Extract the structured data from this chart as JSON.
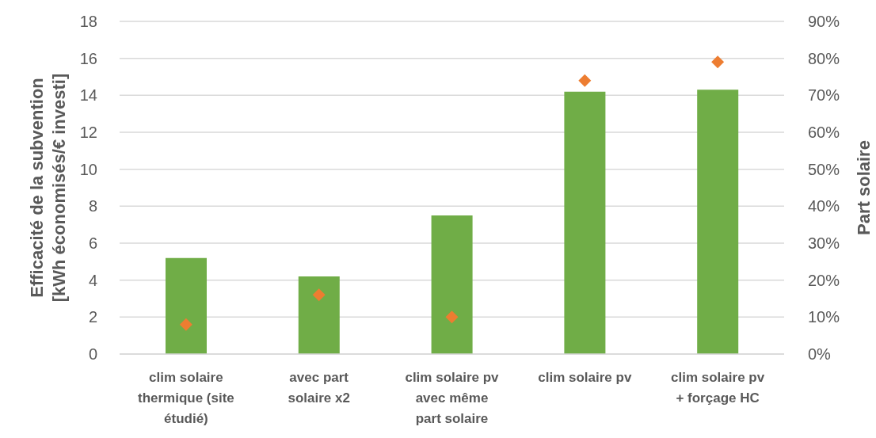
{
  "chart_data": {
    "type": "bar",
    "categories": [
      "clim solaire thermique (site étudié)",
      "avec part solaire x2",
      "clim solaire pv avec même part solaire",
      "clim solaire pv",
      "clim solaire pv + forçage HC"
    ],
    "ylabel": "Efficacité de la subvention [kWh économisés/€ investi]",
    "y2label": "Part solaire",
    "ylim": [
      0,
      18
    ],
    "yticks": [
      0,
      2,
      4,
      6,
      8,
      10,
      12,
      14,
      16,
      18
    ],
    "y2lim": [
      0,
      90
    ],
    "y2ticks": [
      {
        "value": 0,
        "label": "0%"
      },
      {
        "value": 10,
        "label": "10%"
      },
      {
        "value": 20,
        "label": "20%"
      },
      {
        "value": 30,
        "label": "30%"
      },
      {
        "value": 40,
        "label": "40%"
      },
      {
        "value": 50,
        "label": "50%"
      },
      {
        "value": 60,
        "label": "60%"
      },
      {
        "value": 70,
        "label": "70%"
      },
      {
        "value": 80,
        "label": "80%"
      },
      {
        "value": 90,
        "label": "90%"
      }
    ],
    "grid": "y",
    "marker": "diamond",
    "series": [
      {
        "color": "#70ad47",
        "values": [
          5.2,
          4.2,
          7.5,
          14.2,
          14.3
        ]
      },
      {
        "type": "scatter",
        "axis": "y2",
        "color": "#ed7d31",
        "values": [
          8,
          16,
          10,
          74,
          79
        ]
      }
    ]
  }
}
